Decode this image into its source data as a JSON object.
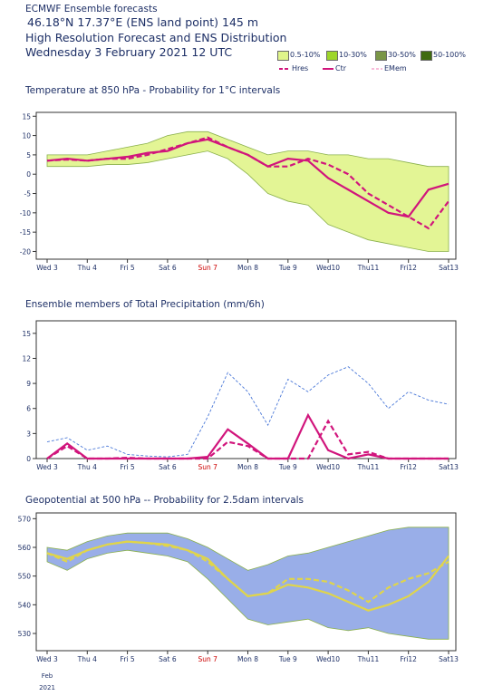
{
  "header": {
    "line1": "ECMWF Ensemble forecasts",
    "line2": "46.18°N 17.37°E (ENS land point) 145 m",
    "line3": "High Resolution Forecast and ENS Distribution",
    "line4": "Wednesday  3 February 2021 12 UTC"
  },
  "legend": {
    "boxes": [
      {
        "label": "0.5-10%",
        "color": "#e0f58a"
      },
      {
        "label": "10-30%",
        "color": "#9ed62a"
      },
      {
        "label": "30-50%",
        "color": "#7a9646"
      },
      {
        "label": "50-100%",
        "color": "#3f6b10"
      }
    ],
    "lines": [
      {
        "label": "Hres",
        "color": "#d1157c",
        "style": "dashed"
      },
      {
        "label": "Ctr",
        "color": "#d1157c",
        "style": "solid"
      },
      {
        "label": "EMem",
        "color": "#f07ab4",
        "style": "dashed-thin"
      }
    ]
  },
  "x_axis": {
    "day_labels": [
      "Wed 3",
      "Thu 4",
      "Fri 5",
      "Sat 6",
      "Sun 7",
      "Mon 8",
      "Tue 9",
      "Wed10",
      "Thu11",
      "Fri12",
      "Sat13"
    ],
    "highlight_index": 4,
    "highlight_color": "#cc0000",
    "month": "Feb",
    "year": "2021"
  },
  "chart_data": [
    {
      "type": "line",
      "title": "Temperature at 850 hPa - Probability for 1°C intervals",
      "xlabel": "",
      "ylabel": "",
      "ylim": [
        -22,
        16
      ],
      "yticks": [
        -20,
        -15,
        -10,
        -5,
        0,
        5,
        10,
        15
      ],
      "x_unit": "days since Wed 3 00 UTC",
      "x": [
        0,
        0.5,
        1,
        1.5,
        2,
        2.5,
        3,
        3.5,
        4,
        4.5,
        5,
        5.5,
        6,
        6.5,
        7,
        7.5,
        8,
        8.5,
        9,
        9.5,
        10
      ],
      "series": [
        {
          "name": "Hres",
          "style": "dashed",
          "color": "#d1157c",
          "values": [
            3.5,
            3.8,
            3.5,
            4,
            4,
            5,
            6.5,
            8,
            9.5,
            7,
            5,
            2,
            2,
            4,
            2.5,
            0,
            -5,
            -8,
            -11,
            -14,
            -7
          ]
        },
        {
          "name": "Ctr",
          "style": "solid",
          "color": "#d1157c",
          "values": [
            3.5,
            4,
            3.5,
            4,
            4.5,
            5.5,
            6,
            8,
            9,
            7,
            5,
            2,
            4,
            3.5,
            -1,
            -4,
            -7,
            -10,
            -11,
            -4,
            -2.5
          ]
        },
        {
          "name": "Ens upper",
          "style": "band",
          "color": "#e0f58a",
          "values": [
            5,
            5,
            5,
            6,
            7,
            8,
            10,
            11,
            11,
            9,
            7,
            5,
            6,
            6,
            5,
            5,
            4,
            4,
            3,
            2,
            2
          ]
        },
        {
          "name": "Ens lower",
          "style": "band",
          "color": "#e0f58a",
          "values": [
            2,
            2,
            2,
            2.5,
            2.5,
            3,
            4,
            5,
            6,
            4,
            0,
            -5,
            -7,
            -8,
            -13,
            -15,
            -17,
            -18,
            -19,
            -20,
            -20
          ]
        }
      ]
    },
    {
      "type": "line",
      "title": "Ensemble members of Total Precipitation (mm/6h)",
      "xlabel": "",
      "ylabel": "",
      "ylim": [
        0,
        16.5
      ],
      "yticks": [
        0,
        3,
        6,
        9,
        12,
        15
      ],
      "x_unit": "days since Wed 3 00 UTC",
      "x": [
        0,
        0.5,
        1,
        1.5,
        2,
        2.5,
        3,
        3.5,
        4,
        4.5,
        5,
        5.5,
        6,
        6.5,
        7,
        7.5,
        8,
        8.5,
        9,
        9.5,
        10
      ],
      "series": [
        {
          "name": "Hres",
          "style": "dashed",
          "color": "#d1157c",
          "values": [
            0,
            1.5,
            0,
            0,
            0.1,
            0,
            0,
            0,
            0,
            2,
            1.5,
            0,
            0,
            0,
            4.5,
            0.5,
            0.8,
            0,
            0,
            0,
            0
          ]
        },
        {
          "name": "Ctr",
          "style": "solid",
          "color": "#d1157c",
          "values": [
            0,
            1.8,
            0,
            0,
            0,
            0,
            0,
            0,
            0.2,
            3.5,
            1.8,
            0,
            0,
            5.2,
            1,
            0,
            0.5,
            0,
            0,
            0,
            0
          ]
        },
        {
          "name": "EMem max",
          "style": "dashed-thin",
          "color": "#4a78d8",
          "values": [
            2,
            2.5,
            1,
            1.5,
            0.5,
            0.3,
            0.2,
            0.5,
            5,
            10.3,
            8,
            4,
            9.5,
            8,
            10,
            11,
            9,
            6,
            8,
            7,
            6.5
          ]
        }
      ]
    },
    {
      "type": "line",
      "title": "Geopotential at 500 hPa -- Probability for 2.5dam intervals",
      "xlabel": "",
      "ylabel": "",
      "ylim": [
        524,
        572
      ],
      "yticks": [
        530,
        540,
        550,
        560,
        570
      ],
      "x_unit": "days since Wed 3 00 UTC",
      "x": [
        0,
        0.5,
        1,
        1.5,
        2,
        2.5,
        3,
        3.5,
        4,
        4.5,
        5,
        5.5,
        6,
        6.5,
        7,
        7.5,
        8,
        8.5,
        9,
        9.5,
        10
      ],
      "series": [
        {
          "name": "Hres",
          "style": "solid",
          "color": "#e0d54a",
          "values": [
            558,
            556,
            559,
            561,
            562,
            561.5,
            561,
            559,
            556,
            549,
            543,
            544,
            547,
            546,
            544,
            541,
            538,
            540,
            543,
            548,
            557
          ]
        },
        {
          "name": "Ctr",
          "style": "dashed",
          "color": "#e0d54a",
          "values": [
            558,
            555,
            559,
            561,
            562,
            561.5,
            560.5,
            559,
            555,
            549,
            543,
            544,
            549,
            549,
            548,
            545,
            541,
            546,
            549,
            551,
            555
          ]
        },
        {
          "name": "Ens upper",
          "style": "band",
          "color": "#8fa6e6",
          "values": [
            560,
            559,
            562,
            564,
            565,
            565,
            565,
            563,
            560,
            556,
            552,
            554,
            557,
            558,
            560,
            562,
            564,
            566,
            567,
            567,
            567
          ]
        },
        {
          "name": "Ens lower",
          "style": "band",
          "color": "#8fa6e6",
          "values": [
            555,
            552,
            556,
            558,
            559,
            558,
            557,
            555,
            549,
            542,
            535,
            533,
            534,
            535,
            532,
            531,
            532,
            530,
            529,
            528,
            528
          ]
        }
      ]
    }
  ]
}
